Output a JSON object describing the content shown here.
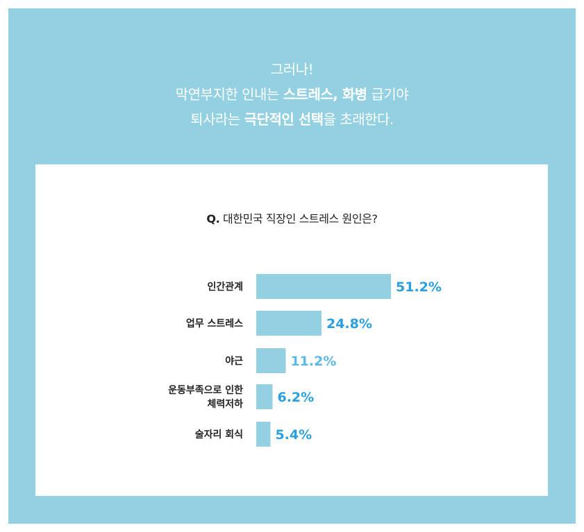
{
  "headline": {
    "line1": "그러나!",
    "line2_pre": "막연부지한 인내는 ",
    "line2_bold": "스트레스, 화병",
    "line2_post": " 급기야",
    "line3_pre": "퇴사라는 ",
    "line3_bold": "극단적인 선택",
    "line3_post": "을 초래한다."
  },
  "question": {
    "prefix": "Q.",
    "text": " 대한민국 직장인 스트레스 원인은?"
  },
  "colors": {
    "frame": "#93d1e2",
    "bar": "#93d1e2",
    "value_strong": "#2a9fe0",
    "value_light": "#5cb8e8"
  },
  "chart_data": {
    "type": "bar",
    "orientation": "horizontal",
    "categories": [
      [
        "인간관계"
      ],
      [
        "업무 스트레스"
      ],
      [
        "야근"
      ],
      [
        "운동부족으로 인한",
        "체력저하"
      ],
      [
        "술자리 회식"
      ]
    ],
    "values": [
      51.2,
      24.8,
      11.2,
      6.2,
      5.4
    ],
    "value_labels": [
      "51.2%",
      "24.8%",
      "11.2%",
      "6.2%",
      "5.4%"
    ],
    "unit": "%",
    "xlim": [
      0,
      51.2
    ]
  }
}
